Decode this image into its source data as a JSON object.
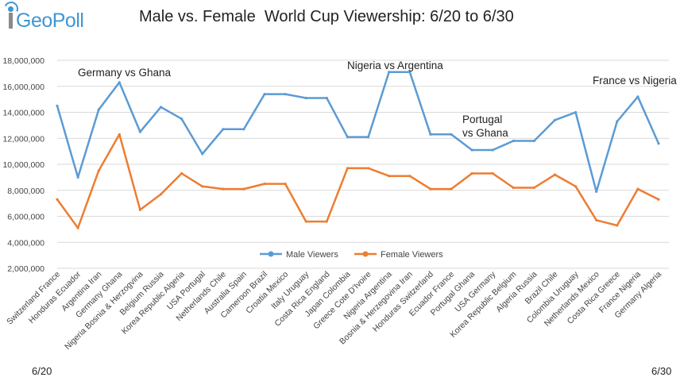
{
  "header": {
    "logo_text": "GeoPoll",
    "title": "Male vs. Female  World Cup Viewership: 6/20 to 6/30"
  },
  "date_start": "6/20",
  "date_end": "6/30",
  "colors": {
    "male": "#5b9bd5",
    "female": "#ed7d31",
    "grid": "#d9d9d9",
    "text": "#444444"
  },
  "chart_data": {
    "type": "line",
    "title": "Male vs. Female  World Cup Viewership: 6/20 to 6/30",
    "xlabel": "",
    "ylabel": "",
    "ylim": [
      2000000,
      18000000
    ],
    "ytick_step": 2000000,
    "grid": true,
    "legend_position": "bottom-center",
    "categories": [
      "Switzerland France",
      "Honduras Ecuador",
      "Argentina Iran",
      "Germany Ghana",
      "Nigeria  Bosnia & Herzogvina",
      "Belgium Russia",
      "Korea Republic Algeria",
      "USA Portugal",
      "Netherlands Chile",
      "Australia Spain",
      "Cameroon Brazil",
      "Croatia Mexico",
      "Italy Uruguay",
      "Costa Rica England",
      "Japan Colombia",
      "Greece Cote D'Ivoire",
      "Nigeria  Argentina",
      "Bosnia & Herzegovina Iran",
      "Honduras Switzerland",
      "Ecuador France",
      "Portugal Ghana",
      "USA Germany",
      "Korea Republic Belgium",
      "Algeria Russia",
      "Brazil Chile",
      "Colombia Uruguay",
      "Netherlands Mexico",
      "Costa Rica Greece",
      "France Nigeria",
      "Germany Algeria"
    ],
    "series": [
      {
        "name": "Male Viewers",
        "color": "#5b9bd5",
        "values": [
          14500000,
          9000000,
          14200000,
          16300000,
          12500000,
          14400000,
          13500000,
          10800000,
          12700000,
          12700000,
          15400000,
          15400000,
          15100000,
          15100000,
          12100000,
          12100000,
          17100000,
          17100000,
          12300000,
          12300000,
          11100000,
          11100000,
          11800000,
          11800000,
          13400000,
          14000000,
          7900000,
          13300000,
          15200000,
          11600000
        ]
      },
      {
        "name": "Female Viewers",
        "color": "#ed7d31",
        "values": [
          7300000,
          5100000,
          9500000,
          12300000,
          6500000,
          7700000,
          9300000,
          8300000,
          8100000,
          8100000,
          8500000,
          8500000,
          5600000,
          5600000,
          9700000,
          9700000,
          9100000,
          9100000,
          8100000,
          8100000,
          9300000,
          9300000,
          8200000,
          8200000,
          9200000,
          8300000,
          5700000,
          5300000,
          8100000,
          7300000
        ]
      }
    ],
    "annotations": [
      {
        "text": "Germany vs Ghana",
        "index": 3
      },
      {
        "text": "Nigeria vs Argentina",
        "index": 16.5
      },
      {
        "text": "Portugal vs Ghana",
        "index": 20.5,
        "lines": [
          "Portugal",
          "vs Ghana"
        ]
      },
      {
        "text": "France vs Nigeria",
        "index": 28
      }
    ]
  }
}
